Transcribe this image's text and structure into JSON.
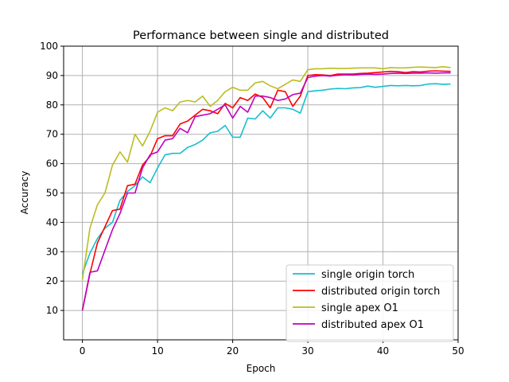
{
  "chart_data": {
    "type": "line",
    "title": "Performance between single and distributed",
    "xlabel": "Epoch",
    "ylabel": "Accuracy",
    "xlim": [
      -2.5,
      50
    ],
    "ylim": [
      0,
      100
    ],
    "xticks": [
      0,
      10,
      20,
      30,
      40,
      50
    ],
    "yticks": [
      10,
      20,
      30,
      40,
      50,
      60,
      70,
      80,
      90,
      100
    ],
    "grid": true,
    "legend_position": "lower-right",
    "x": [
      0,
      1,
      2,
      3,
      4,
      5,
      6,
      7,
      8,
      9,
      10,
      11,
      12,
      13,
      14,
      15,
      16,
      17,
      18,
      19,
      20,
      21,
      22,
      23,
      24,
      25,
      26,
      27,
      28,
      29,
      30,
      31,
      32,
      33,
      34,
      35,
      36,
      37,
      38,
      39,
      40,
      41,
      42,
      43,
      44,
      45,
      46,
      47,
      48,
      49
    ],
    "series": [
      {
        "name": "single origin torch",
        "color": "#17becf",
        "values": [
          22.5,
          29.5,
          34.5,
          38.0,
          40.0,
          47.5,
          50.5,
          52.5,
          55.5,
          53.5,
          58.5,
          63.0,
          63.5,
          63.5,
          65.5,
          66.5,
          68.0,
          70.5,
          71.0,
          73.0,
          69.0,
          69.0,
          75.5,
          75.2,
          78.0,
          75.5,
          79.0,
          79.0,
          78.5,
          77.2,
          84.5,
          84.8,
          85.0,
          85.4,
          85.6,
          85.5,
          85.8,
          85.9,
          86.4,
          86.0,
          86.3,
          86.6,
          86.5,
          86.6,
          86.5,
          86.6,
          87.1,
          87.2,
          87.0,
          87.1
        ]
      },
      {
        "name": "distributed origin torch",
        "color": "#ff0000",
        "values": [
          10.0,
          22.5,
          33.0,
          38.5,
          44.0,
          44.5,
          52.5,
          53.0,
          59.5,
          62.5,
          68.5,
          69.5,
          69.5,
          73.5,
          74.5,
          76.5,
          78.5,
          78.0,
          77.0,
          80.5,
          79.0,
          82.5,
          81.5,
          83.7,
          82.5,
          79.0,
          85.0,
          84.5,
          79.5,
          83.0,
          90.0,
          90.3,
          90.2,
          90.0,
          90.5,
          90.5,
          90.5,
          90.7,
          90.8,
          91.0,
          91.2,
          91.4,
          91.3,
          91.0,
          91.3,
          91.2,
          91.5,
          91.6,
          91.5,
          91.4
        ]
      },
      {
        "name": "single apex O1",
        "color": "#bcbd22",
        "values": [
          20.5,
          38.0,
          46.0,
          50.0,
          59.5,
          64.0,
          60.5,
          70.0,
          66.0,
          71.0,
          77.5,
          79.0,
          78.0,
          81.0,
          81.5,
          81.0,
          83.0,
          79.5,
          81.5,
          84.5,
          86.0,
          85.0,
          85.0,
          87.5,
          88.0,
          86.5,
          85.5,
          87.0,
          88.5,
          88.0,
          92.0,
          92.3,
          92.3,
          92.5,
          92.4,
          92.4,
          92.5,
          92.6,
          92.6,
          92.6,
          92.3,
          92.7,
          92.6,
          92.6,
          92.8,
          92.9,
          92.8,
          92.7,
          93.0,
          92.7
        ]
      },
      {
        "name": "distributed apex O1",
        "color": "#bf00bf",
        "values": [
          10.0,
          23.0,
          23.5,
          30.5,
          37.5,
          43.0,
          50.0,
          50.0,
          58.5,
          63.0,
          64.0,
          68.0,
          68.5,
          72.0,
          70.5,
          76.0,
          76.5,
          77.0,
          78.5,
          80.0,
          75.5,
          79.5,
          77.5,
          83.0,
          83.0,
          82.5,
          81.5,
          82.0,
          83.5,
          84.0,
          89.3,
          89.8,
          90.0,
          89.8,
          90.1,
          90.3,
          90.2,
          90.4,
          90.5,
          90.4,
          90.5,
          90.7,
          90.8,
          90.7,
          90.8,
          90.8,
          90.9,
          90.8,
          90.9,
          90.9
        ]
      }
    ]
  }
}
